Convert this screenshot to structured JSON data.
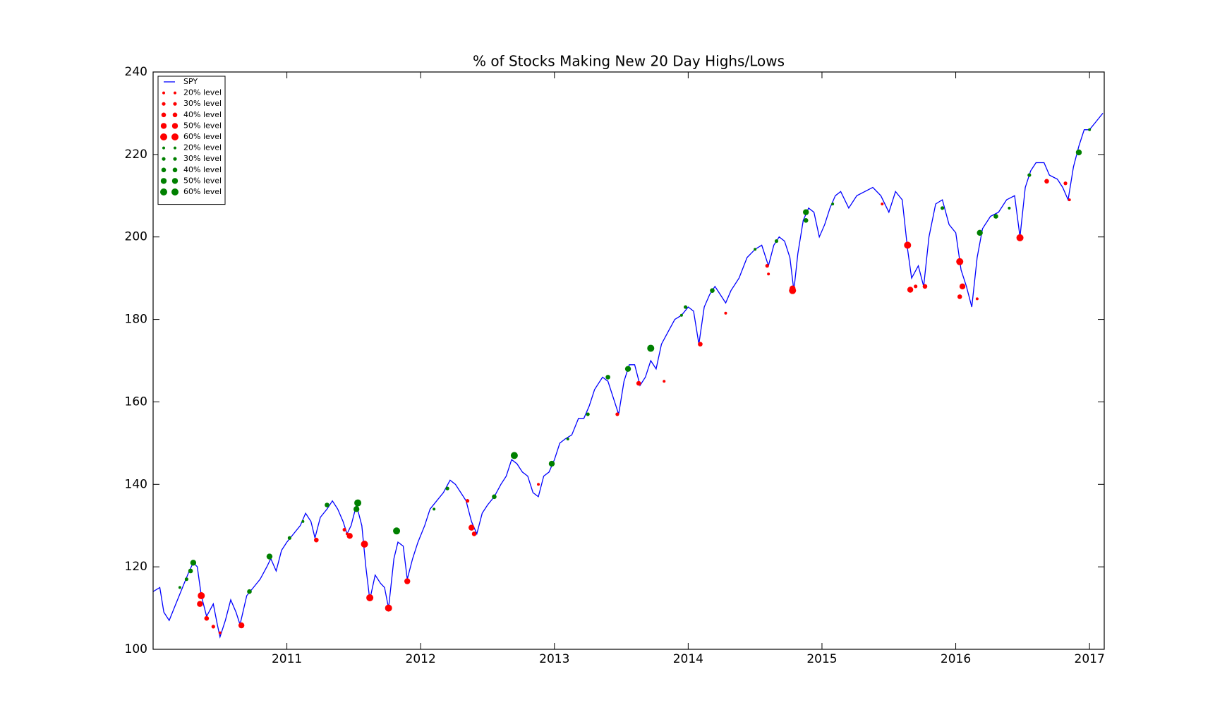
{
  "chart_data": {
    "type": "line",
    "title": "% of Stocks Making New 20 Day Highs/Lows",
    "xlim": [
      2010.0,
      2017.11
    ],
    "xticks": [
      2011,
      2012,
      2013,
      2014,
      2015,
      2016,
      2017
    ],
    "ylim": [
      100,
      240
    ],
    "yticks": [
      100,
      120,
      140,
      160,
      180,
      200,
      220,
      240
    ],
    "grid": false,
    "legend": "upper left",
    "series": [
      {
        "name": "SPY",
        "type": "line",
        "color": "#0000ff",
        "x": [
          2010.0,
          2010.05,
          2010.08,
          2010.12,
          2010.17,
          2010.22,
          2010.27,
          2010.3,
          2010.33,
          2010.36,
          2010.4,
          2010.45,
          2010.48,
          2010.5,
          2010.54,
          2010.58,
          2010.62,
          2010.65,
          2010.7,
          2010.75,
          2010.8,
          2010.85,
          2010.88,
          2010.92,
          2010.96,
          2011.0,
          2011.05,
          2011.1,
          2011.14,
          2011.18,
          2011.21,
          2011.25,
          2011.3,
          2011.34,
          2011.38,
          2011.42,
          2011.45,
          2011.48,
          2011.52,
          2011.56,
          2011.59,
          2011.62,
          2011.66,
          2011.7,
          2011.73,
          2011.76,
          2011.8,
          2011.83,
          2011.87,
          2011.9,
          2011.94,
          2011.98,
          2012.03,
          2012.07,
          2012.12,
          2012.17,
          2012.22,
          2012.26,
          2012.3,
          2012.34,
          2012.38,
          2012.42,
          2012.46,
          2012.5,
          2012.55,
          2012.6,
          2012.64,
          2012.68,
          2012.72,
          2012.76,
          2012.8,
          2012.84,
          2012.88,
          2012.92,
          2012.96,
          2013.0,
          2013.04,
          2013.08,
          2013.13,
          2013.18,
          2013.22,
          2013.26,
          2013.3,
          2013.36,
          2013.4,
          2013.45,
          2013.48,
          2013.52,
          2013.56,
          2013.6,
          2013.64,
          2013.68,
          2013.72,
          2013.76,
          2013.8,
          2013.85,
          2013.9,
          2013.95,
          2014.0,
          2014.04,
          2014.08,
          2014.12,
          2014.16,
          2014.2,
          2014.24,
          2014.28,
          2014.32,
          2014.38,
          2014.44,
          2014.5,
          2014.55,
          2014.6,
          2014.64,
          2014.68,
          2014.72,
          2014.76,
          2014.79,
          2014.82,
          2014.86,
          2014.9,
          2014.94,
          2014.98,
          2015.02,
          2015.06,
          2015.1,
          2015.14,
          2015.2,
          2015.26,
          2015.32,
          2015.38,
          2015.44,
          2015.5,
          2015.55,
          2015.6,
          2015.64,
          2015.67,
          2015.72,
          2015.76,
          2015.8,
          2015.85,
          2015.9,
          2015.95,
          2016.0,
          2016.04,
          2016.08,
          2016.12,
          2016.16,
          2016.2,
          2016.26,
          2016.32,
          2016.38,
          2016.44,
          2016.48,
          2016.52,
          2016.56,
          2016.6,
          2016.66,
          2016.7,
          2016.76,
          2016.8,
          2016.84,
          2016.88,
          2016.92,
          2016.96,
          2017.0,
          2017.05,
          2017.1
        ],
        "values": [
          114,
          115,
          109,
          107,
          111,
          115,
          119,
          121,
          120,
          113,
          108,
          111,
          106,
          103,
          107,
          112,
          109,
          106,
          113,
          115,
          117,
          120,
          122,
          119,
          124,
          126,
          128,
          130,
          133,
          131,
          127,
          132,
          134,
          136,
          134,
          131,
          128,
          130,
          135,
          130,
          120,
          112,
          118,
          116,
          115,
          110,
          122,
          126,
          125,
          117,
          122,
          126,
          130,
          134,
          136,
          138,
          141,
          140,
          138,
          136,
          131,
          128,
          133,
          135,
          137,
          140,
          142,
          146,
          145,
          143,
          142,
          138,
          137,
          142,
          143,
          146,
          150,
          151,
          152,
          156,
          156,
          159,
          163,
          166,
          165,
          160,
          157,
          165,
          169,
          169,
          164,
          166,
          170,
          168,
          174,
          177,
          180,
          181,
          183,
          182,
          174,
          183,
          186,
          188,
          186,
          184,
          187,
          190,
          195,
          197,
          198,
          193,
          198,
          200,
          199,
          195,
          187,
          196,
          204,
          207,
          206,
          200,
          203,
          207,
          210,
          211,
          207,
          210,
          211,
          212,
          210,
          206,
          211,
          209,
          197,
          190,
          193,
          188,
          200,
          208,
          209,
          203,
          201,
          192,
          188,
          183,
          195,
          202,
          205,
          206,
          209,
          210,
          200,
          212,
          216,
          218,
          218,
          215,
          214,
          212,
          209,
          217,
          222,
          226,
          226,
          228,
          230
        ]
      },
      {
        "name": "20% level",
        "type": "scatter",
        "color": "#ff0000",
        "marker_size": 2,
        "x": [
          2010.5,
          2011.45,
          2012.88,
          2013.82,
          2014.28,
          2014.6,
          2015.45,
          2016.16,
          2016.85
        ],
        "values": [
          104,
          128,
          140,
          165,
          181.5,
          191,
          208,
          185,
          209
        ]
      },
      {
        "name": "30% level",
        "type": "scatter",
        "color": "#ff0000",
        "marker_size": 2.6,
        "x": [
          2010.45,
          2011.43,
          2012.35,
          2013.47,
          2014.59,
          2015.7,
          2016.82
        ],
        "values": [
          105.5,
          129,
          136,
          157,
          193,
          188,
          213
        ]
      },
      {
        "name": "40% level",
        "type": "scatter",
        "color": "#ff0000",
        "marker_size": 3.3,
        "x": [
          2010.4,
          2011.22,
          2012.4,
          2013.63,
          2014.09,
          2015.77,
          2016.03,
          2016.68
        ],
        "values": [
          107.5,
          126.5,
          128,
          164.5,
          174,
          188,
          185.5,
          213.5
        ]
      },
      {
        "name": "50% level",
        "type": "scatter",
        "color": "#ff0000",
        "marker_size": 4.2,
        "x": [
          2010.35,
          2010.66,
          2011.47,
          2011.9,
          2012.38,
          2014.78,
          2015.66,
          2016.05
        ],
        "values": [
          111,
          105.8,
          127.5,
          116.5,
          129.5,
          187.5,
          187.2,
          188
        ]
      },
      {
        "name": "60% level",
        "type": "scatter",
        "color": "#ff0000",
        "marker_size": 5,
        "x": [
          2010.36,
          2011.58,
          2011.62,
          2011.76,
          2014.78,
          2015.64,
          2016.03,
          2016.48
        ],
        "values": [
          113,
          125.5,
          112.5,
          110,
          187,
          198,
          194,
          199.8
        ]
      },
      {
        "name": "20% level",
        "type": "scatter",
        "color": "#008000",
        "marker_size": 2,
        "x": [
          2010.2,
          2011.12,
          2012.1,
          2013.1,
          2013.95,
          2014.5,
          2015.08,
          2016.4,
          2017.0
        ],
        "values": [
          115,
          131,
          134,
          151,
          181,
          197,
          208,
          207,
          226
        ]
      },
      {
        "name": "30% level",
        "type": "scatter",
        "color": "#008000",
        "marker_size": 2.6,
        "x": [
          2010.25,
          2011.02,
          2012.2,
          2013.25,
          2013.98,
          2014.66,
          2015.9,
          2016.55
        ],
        "values": [
          117,
          127,
          139,
          157,
          183,
          199,
          207,
          215
        ]
      },
      {
        "name": "40% level",
        "type": "scatter",
        "color": "#008000",
        "marker_size": 3.3,
        "x": [
          2010.28,
          2010.72,
          2011.3,
          2012.55,
          2013.4,
          2014.18,
          2014.88,
          2016.3
        ],
        "values": [
          119,
          114,
          135,
          137,
          166,
          187,
          204,
          205
        ]
      },
      {
        "name": "50% level",
        "type": "scatter",
        "color": "#008000",
        "marker_size": 4.2,
        "x": [
          2010.3,
          2010.87,
          2011.52,
          2012.98,
          2013.55,
          2014.88,
          2016.18,
          2016.92
        ],
        "values": [
          121,
          122.5,
          134,
          145,
          168,
          206,
          201,
          220.5
        ]
      },
      {
        "name": "60% level",
        "type": "scatter",
        "color": "#008000",
        "marker_size": 5,
        "x": [
          2011.53,
          2011.82,
          2012.7,
          2013.72
        ],
        "values": [
          135.5,
          128.7,
          147,
          173
        ]
      }
    ]
  }
}
